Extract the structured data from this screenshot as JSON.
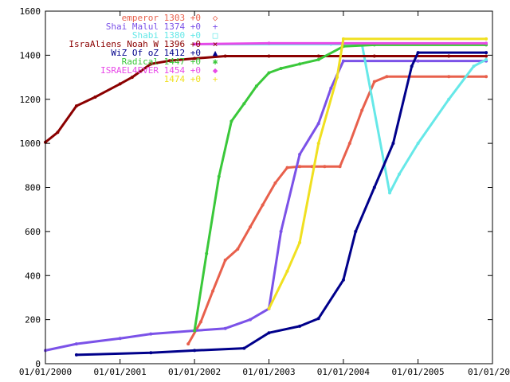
{
  "chart_data": {
    "type": "line",
    "title": "",
    "xlabel": "",
    "ylabel": "",
    "xlim": [
      "2000-01-01",
      "2006-01-01"
    ],
    "ylim": [
      0,
      1600
    ],
    "grid": false,
    "legend_position": "top-right",
    "x_ticks": [
      "01/01/2000",
      "01/01/2001",
      "01/01/2002",
      "01/01/2003",
      "01/01/2004",
      "01/01/2005",
      "01/01/20"
    ],
    "y_ticks": [
      "0",
      "200",
      "400",
      "600",
      "800",
      "1000",
      "1200",
      "1400",
      "1600"
    ],
    "series": [
      {
        "name": "emperor",
        "legend": "emperor 1303 +0",
        "marker": "◇",
        "color": "#e8604c",
        "points": [
          [
            "2001-12-01",
            90
          ],
          [
            "2002-02-01",
            190
          ],
          [
            "2002-04-01",
            330
          ],
          [
            "2002-06-01",
            470
          ],
          [
            "2002-08-01",
            520
          ],
          [
            "2002-10-01",
            620
          ],
          [
            "2002-12-01",
            720
          ],
          [
            "2003-02-01",
            820
          ],
          [
            "2003-04-01",
            890
          ],
          [
            "2003-06-01",
            895
          ],
          [
            "2003-08-01",
            895
          ],
          [
            "2003-10-01",
            895
          ],
          [
            "2003-12-15",
            895
          ],
          [
            "2004-02-01",
            1000
          ],
          [
            "2004-04-01",
            1150
          ],
          [
            "2004-06-01",
            1280
          ],
          [
            "2004-08-01",
            1303
          ],
          [
            "2005-06-01",
            1303
          ],
          [
            "2005-12-01",
            1303
          ]
        ]
      },
      {
        "name": "Shai Malul",
        "legend": "Shai Malul 1374 +0",
        "marker": "+",
        "color": "#7b52e8",
        "points": [
          [
            "2000-01-01",
            60
          ],
          [
            "2000-06-01",
            90
          ],
          [
            "2001-01-01",
            115
          ],
          [
            "2001-06-01",
            135
          ],
          [
            "2002-01-01",
            150
          ],
          [
            "2002-06-01",
            160
          ],
          [
            "2002-10-01",
            200
          ],
          [
            "2003-01-01",
            250
          ],
          [
            "2003-03-01",
            600
          ],
          [
            "2003-06-01",
            950
          ],
          [
            "2003-09-01",
            1090
          ],
          [
            "2003-11-01",
            1250
          ],
          [
            "2004-01-01",
            1374
          ],
          [
            "2005-01-01",
            1374
          ],
          [
            "2005-12-01",
            1374
          ]
        ]
      },
      {
        "name": "Shabi",
        "legend": "Shabi 1380 +0",
        "marker": "□",
        "color": "#66e8e8",
        "points": [
          [
            "2002-01-01",
            1450
          ],
          [
            "2003-11-01",
            1450
          ],
          [
            "2004-04-01",
            1450
          ],
          [
            "2004-08-15",
            775
          ],
          [
            "2004-10-01",
            860
          ],
          [
            "2005-01-01",
            1000
          ],
          [
            "2005-06-01",
            1200
          ],
          [
            "2005-10-01",
            1350
          ],
          [
            "2005-12-01",
            1380
          ]
        ]
      },
      {
        "name": "IsraAliens Noah W",
        "legend": "IsraAliens Noah W 1396 +0",
        "marker": "×",
        "color": "#8b0000",
        "points": [
          [
            "2000-01-01",
            1005
          ],
          [
            "2000-03-01",
            1050
          ],
          [
            "2000-06-01",
            1170
          ],
          [
            "2000-09-01",
            1210
          ],
          [
            "2001-01-01",
            1270
          ],
          [
            "2001-03-01",
            1300
          ],
          [
            "2001-06-01",
            1360
          ],
          [
            "2001-09-01",
            1375
          ],
          [
            "2002-01-01",
            1385
          ],
          [
            "2002-06-01",
            1396
          ],
          [
            "2003-01-01",
            1396
          ],
          [
            "2003-09-01",
            1396
          ],
          [
            "2004-06-01",
            1396
          ],
          [
            "2005-06-01",
            1396
          ],
          [
            "2005-12-01",
            1396
          ]
        ]
      },
      {
        "name": "WiZ Of oZ",
        "legend": "WiZ Of oZ 1412 +0",
        "marker": "▲",
        "color": "#00008b",
        "points": [
          [
            "2000-06-01",
            40
          ],
          [
            "2001-06-01",
            50
          ],
          [
            "2002-01-01",
            60
          ],
          [
            "2002-09-01",
            70
          ],
          [
            "2003-01-01",
            140
          ],
          [
            "2003-06-01",
            170
          ],
          [
            "2003-09-01",
            205
          ],
          [
            "2004-01-01",
            380
          ],
          [
            "2004-03-01",
            600
          ],
          [
            "2004-06-01",
            800
          ],
          [
            "2004-09-01",
            1000
          ],
          [
            "2004-12-01",
            1350
          ],
          [
            "2005-01-01",
            1412
          ],
          [
            "2005-12-01",
            1412
          ]
        ]
      },
      {
        "name": "Radical",
        "legend": "Radical 1447 +0",
        "marker": "✱",
        "color": "#3ac83a",
        "points": [
          [
            "2002-01-01",
            150
          ],
          [
            "2002-03-01",
            500
          ],
          [
            "2002-05-01",
            850
          ],
          [
            "2002-07-01",
            1100
          ],
          [
            "2002-09-01",
            1180
          ],
          [
            "2002-11-01",
            1260
          ],
          [
            "2003-01-01",
            1320
          ],
          [
            "2003-03-01",
            1340
          ],
          [
            "2003-06-01",
            1360
          ],
          [
            "2003-09-01",
            1380
          ],
          [
            "2004-01-01",
            1440
          ],
          [
            "2004-06-01",
            1447
          ],
          [
            "2005-12-01",
            1447
          ]
        ]
      },
      {
        "name": "ISRAEL4EVER",
        "legend": "ISRAEL4EVER 1454 +0",
        "marker": "◆",
        "color": "#e84ae8",
        "points": [
          [
            "2002-01-01",
            1450
          ],
          [
            "2003-01-01",
            1454
          ],
          [
            "2004-01-01",
            1454
          ],
          [
            "2005-12-01",
            1454
          ]
        ]
      },
      {
        "name": "",
        "legend": "1474 +0",
        "marker": "+",
        "color": "#f0e020",
        "points": [
          [
            "2003-01-01",
            250
          ],
          [
            "2003-04-01",
            420
          ],
          [
            "2003-06-01",
            550
          ],
          [
            "2003-09-01",
            1000
          ],
          [
            "2003-12-01",
            1300
          ],
          [
            "2004-01-01",
            1474
          ],
          [
            "2005-12-01",
            1474
          ]
        ]
      }
    ]
  }
}
